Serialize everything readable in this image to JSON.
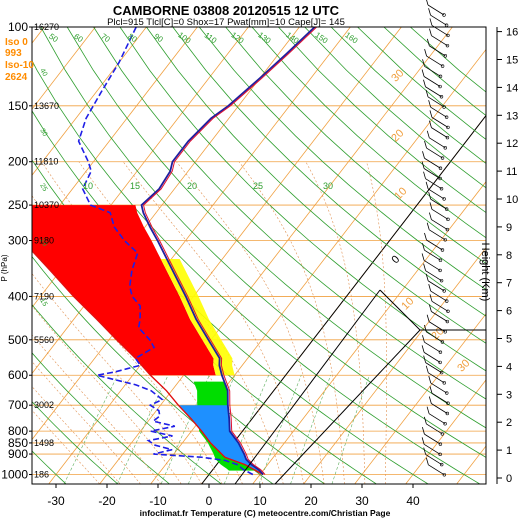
{
  "chart_data": {
    "type": "line",
    "title": "CAMBORNE 03808 20120515 12 UTC",
    "subtitle": "Plcl=915 Tlcl[C]=0 Shox=17 Pwat[mm]=10 Cape[J]= 145",
    "xlabel": "infoclimat.fr Temperature (C) meteocentre.com/Christian Page",
    "ylabel": "P (hPa)",
    "ylabel_right": "Height (Km)",
    "xlim": [
      -35,
      50
    ],
    "ylim": [
      1050,
      100
    ],
    "y_scale": "log",
    "x_ticks": [
      "-30",
      "-20",
      "-10",
      "0",
      "10",
      "20",
      "30",
      "40"
    ],
    "x_tick_values": [
      -30,
      -20,
      -10,
      0,
      10,
      20,
      30,
      40
    ],
    "pressure_ticks": [
      "100",
      "150",
      "200",
      "250",
      "300",
      "400",
      "500",
      "600",
      "700",
      "800",
      "850",
      "900",
      "1000"
    ],
    "pressure_tick_values": [
      100,
      150,
      200,
      250,
      300,
      400,
      500,
      600,
      700,
      800,
      850,
      900,
      1000
    ],
    "height_ticks": [
      "0",
      "1",
      "2",
      "3",
      "4",
      "5",
      "6",
      "7",
      "8",
      "9",
      "10",
      "11",
      "12",
      "13",
      "14",
      "15",
      "16"
    ],
    "height_tick_values": [
      0,
      1,
      2,
      3,
      4,
      5,
      6,
      7,
      8,
      9,
      10,
      11,
      12,
      13,
      14,
      15,
      16
    ],
    "geopotential_labels": [
      {
        "p": 100,
        "label": "16270"
      },
      {
        "p": 150,
        "label": "13670"
      },
      {
        "p": 200,
        "label": "11810"
      },
      {
        "p": 250,
        "label": "10370"
      },
      {
        "p": 300,
        "label": "9180"
      },
      {
        "p": 400,
        "label": "7190"
      },
      {
        "p": 500,
        "label": "5560"
      },
      {
        "p": 700,
        "label": "3002"
      },
      {
        "p": 850,
        "label": "1498"
      },
      {
        "p": 1000,
        "label": "186"
      }
    ],
    "freezing_info": [
      "Iso 0",
      "993",
      "Iso-10",
      "2624"
    ],
    "isotherm_labels": [
      "30",
      "20",
      "10",
      "0",
      "10",
      "20",
      "30"
    ],
    "mixing_labels": [
      "10",
      "15",
      "20",
      "25",
      "30"
    ],
    "dry_adiabat_labels": [
      "50",
      "60",
      "70",
      "80",
      "90",
      "100",
      "110",
      "120",
      "130",
      "140",
      "150",
      "160"
    ],
    "saturated_adiabat_labels": [
      "40",
      "30",
      "25",
      "20",
      "15"
    ],
    "series": [
      {
        "name": "",
        "role": "temperature",
        "color": "#1f1f9f",
        "points": [
          [
            1000,
            10.6
          ],
          [
            975,
            9.0
          ],
          [
            950,
            6.8
          ],
          [
            925,
            5.0
          ],
          [
            900,
            3.8
          ],
          [
            850,
            1.0
          ],
          [
            800,
            -2.5
          ],
          [
            750,
            -4.5
          ],
          [
            700,
            -6.8
          ],
          [
            650,
            -9.0
          ],
          [
            600,
            -12.5
          ],
          [
            570,
            -14.5
          ],
          [
            550,
            -15.5
          ],
          [
            500,
            -20.5
          ],
          [
            450,
            -26.0
          ],
          [
            400,
            -31.5
          ],
          [
            350,
            -38.0
          ],
          [
            300,
            -45.5
          ],
          [
            280,
            -49.0
          ],
          [
            260,
            -52.5
          ],
          [
            250,
            -54.0
          ],
          [
            230,
            -53.0
          ],
          [
            210,
            -53.5
          ],
          [
            200,
            -54.5
          ],
          [
            180,
            -54.5
          ],
          [
            160,
            -53.5
          ],
          [
            150,
            -52.0
          ],
          [
            130,
            -50.0
          ],
          [
            115,
            -48.5
          ],
          [
            100,
            -47.0
          ]
        ]
      },
      {
        "name": "",
        "role": "dewpoint",
        "color": "#1f1fe6",
        "points": [
          [
            1000,
            8.6
          ],
          [
            975,
            6.0
          ],
          [
            950,
            4.0
          ],
          [
            930,
            1.0
          ],
          [
            915,
            -4.0
          ],
          [
            900,
            -14.0
          ],
          [
            880,
            -11.0
          ],
          [
            860,
            -15.0
          ],
          [
            840,
            -17.0
          ],
          [
            820,
            -13.0
          ],
          [
            800,
            -18.0
          ],
          [
            780,
            -14.0
          ],
          [
            760,
            -19.0
          ],
          [
            740,
            -18.5
          ],
          [
            720,
            -19.5
          ],
          [
            700,
            -22.0
          ],
          [
            680,
            -20.5
          ],
          [
            650,
            -24.0
          ],
          [
            630,
            -28.0
          ],
          [
            610,
            -34.0
          ],
          [
            600,
            -37.0
          ],
          [
            590,
            -34.0
          ],
          [
            570,
            -30.0
          ],
          [
            550,
            -32.0
          ],
          [
            520,
            -30.0
          ],
          [
            500,
            -32.0
          ],
          [
            470,
            -36.0
          ],
          [
            450,
            -37.0
          ],
          [
            420,
            -39.0
          ],
          [
            400,
            -42.0
          ],
          [
            380,
            -44.0
          ],
          [
            350,
            -46.0
          ],
          [
            320,
            -47.5
          ],
          [
            300,
            -52.0
          ],
          [
            280,
            -56.0
          ],
          [
            260,
            -59.0
          ],
          [
            250,
            -64.0
          ],
          [
            230,
            -68.0
          ],
          [
            210,
            -69.0
          ],
          [
            200,
            -71.0
          ],
          [
            180,
            -76.0
          ],
          [
            160,
            -78.0
          ],
          [
            140,
            -79.0
          ],
          [
            120,
            -80.0
          ],
          [
            100,
            -82.0
          ]
        ]
      },
      {
        "name": "",
        "role": "parcel",
        "color": "#e01010",
        "points": [
          [
            1000,
            10.6
          ],
          [
            950,
            5.5
          ],
          [
            915,
            0.5
          ],
          [
            850,
            -4.5
          ],
          [
            800,
            -8.0
          ],
          [
            750,
            -12.0
          ],
          [
            700,
            -16.5
          ],
          [
            650,
            -21.0
          ],
          [
            600,
            -26.5
          ],
          [
            550,
            -32.0
          ],
          [
            500,
            -38.5
          ],
          [
            450,
            -45.5
          ],
          [
            400,
            -53.5
          ],
          [
            350,
            -62.0
          ],
          [
            300,
            -72.0
          ],
          [
            250,
            -83.0
          ]
        ]
      }
    ],
    "wind_barbs": {
      "side": "right",
      "levels": 46
    }
  }
}
